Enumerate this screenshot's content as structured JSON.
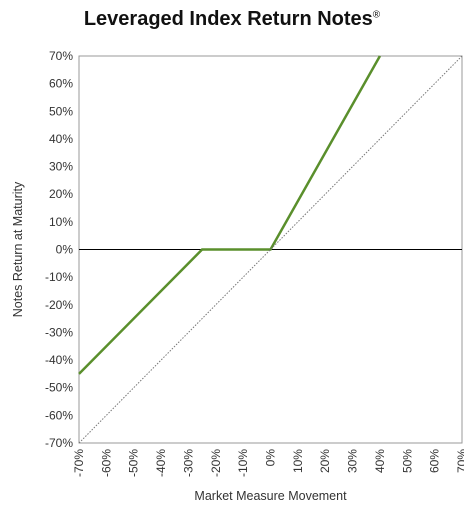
{
  "chart_data": {
    "type": "line",
    "title": "Leveraged Index Return Notes",
    "title_mark": "®",
    "xlabel": "Market Measure Movement",
    "ylabel": "Notes Return at Maturity",
    "xlim": [
      -70,
      70
    ],
    "ylim": [
      -70,
      70
    ],
    "x_ticks": [
      -70,
      -60,
      -50,
      -40,
      -30,
      -20,
      -10,
      0,
      10,
      20,
      30,
      40,
      50,
      60,
      70
    ],
    "y_ticks": [
      70,
      60,
      50,
      40,
      30,
      20,
      10,
      0,
      -10,
      -20,
      -30,
      -40,
      -50,
      -60,
      -70
    ],
    "x_tick_labels": [
      "-70%",
      "-60%",
      "-50%",
      "-40%",
      "-30%",
      "-20%",
      "-10%",
      "0%",
      "10%",
      "20%",
      "30%",
      "40%",
      "50%",
      "60%",
      "70%"
    ],
    "y_tick_labels": [
      "70%",
      "60%",
      "50%",
      "40%",
      "30%",
      "20%",
      "10%",
      "0%",
      "-10%",
      "-20%",
      "-30%",
      "-40%",
      "-50%",
      "-60%",
      "-70%"
    ],
    "grid": false,
    "series": [
      {
        "color": "#5a8f2c",
        "x": [
          -70,
          -25,
          0,
          40
        ],
        "y": [
          -45,
          0,
          0,
          70
        ]
      },
      {
        "color": "#777777",
        "style": "dotted",
        "x": [
          -70,
          70
        ],
        "y": [
          -70,
          70
        ]
      }
    ],
    "zero_line_color": "#000000"
  }
}
